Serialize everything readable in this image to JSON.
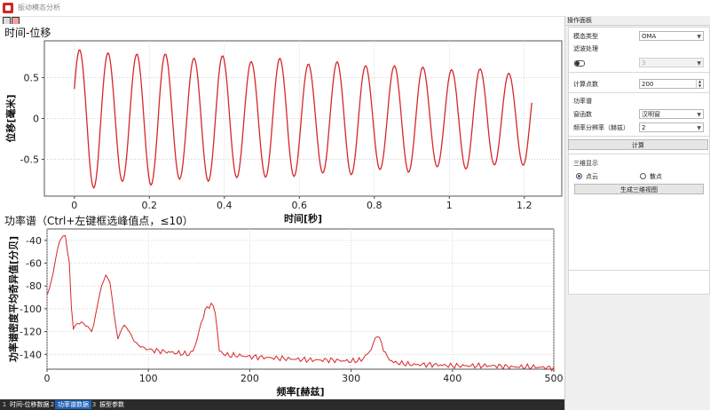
{
  "window": {
    "title": "振动模态分析"
  },
  "plot1": {
    "title": "时间-位移",
    "xlabel": "时间[秒]",
    "ylabel": "位移[毫米]",
    "xticks": [
      "0",
      "0.2",
      "0.4",
      "0.6",
      "0.8",
      "1",
      "1.2"
    ],
    "yticks": [
      "0.5",
      "0",
      "-0.5"
    ]
  },
  "plot2": {
    "title": "功率谱（Ctrl+左键框选峰值点，≤10）",
    "xlabel": "频率[赫兹]",
    "ylabel": "功率谱密度平均奇异值[分贝]",
    "xticks": [
      "0",
      "100",
      "200",
      "300",
      "400",
      "500"
    ],
    "yticks": [
      "-40",
      "-60",
      "-80",
      "-100",
      "-120",
      "-140"
    ]
  },
  "chart_data": [
    {
      "type": "line",
      "title": "时间-位移",
      "xlabel": "时间[秒]",
      "ylabel": "位移[毫米]",
      "xlim": [
        -0.08,
        1.3
      ],
      "ylim": [
        -0.95,
        0.95
      ],
      "grid": true,
      "color": "#d62728",
      "waveform": {
        "t_start": 0.0,
        "t_end": 1.22,
        "frequency_hz": 13.1,
        "amplitude_start": 0.83,
        "amplitude_end": 0.56
      },
      "series": [
        {
          "x_peaks": [
            0.016,
            0.092,
            0.168,
            0.245,
            0.321,
            0.397,
            0.474,
            0.55,
            0.626,
            0.703,
            0.779,
            0.855,
            0.931,
            1.008,
            1.084,
            1.16
          ],
          "y_peaks": [
            0.8,
            0.78,
            0.77,
            0.76,
            0.75,
            0.74,
            0.72,
            0.71,
            0.7,
            0.68,
            0.67,
            0.65,
            0.63,
            0.61,
            0.58,
            0.53
          ]
        }
      ]
    },
    {
      "type": "line",
      "title": "功率谱（Ctrl+左键框选峰值点，≤10）",
      "xlabel": "频率[赫兹]",
      "ylabel": "功率谱密度平均奇异值[分贝]",
      "xlim": [
        0,
        500
      ],
      "ylim": [
        -153,
        -30
      ],
      "grid": true,
      "color": "#d62728",
      "series": [
        {
          "x": [
            0,
            5,
            8,
            13,
            18,
            22,
            25,
            30,
            35,
            40,
            45,
            50,
            55,
            58,
            62,
            66,
            70,
            75,
            80,
            85,
            90,
            95,
            100,
            110,
            120,
            130,
            140,
            145,
            150,
            155,
            160,
            163,
            166,
            170,
            175,
            180,
            190,
            200,
            220,
            240,
            260,
            280,
            300,
            310,
            318,
            322,
            326,
            330,
            336,
            342,
            350,
            360,
            380,
            400,
            420,
            440,
            460,
            480,
            500
          ],
          "y": [
            -88,
            -74,
            -58,
            -38,
            -36,
            -60,
            -118,
            -113,
            -112,
            -116,
            -120,
            -95,
            -76,
            -71,
            -76,
            -104,
            -127,
            -114,
            -118,
            -127,
            -132,
            -134,
            -136,
            -137,
            -138,
            -139,
            -140,
            -136,
            -120,
            -103,
            -97,
            -96,
            -103,
            -137,
            -140,
            -141,
            -141,
            -142,
            -143,
            -144,
            -145,
            -145,
            -146,
            -145,
            -138,
            -131,
            -122,
            -131,
            -143,
            -147,
            -148,
            -149,
            -149,
            -150,
            -150,
            -150,
            -151,
            -151,
            -152
          ]
        }
      ]
    }
  ],
  "status_tabs": [
    {
      "num": "1",
      "label": "时间-位移数据"
    },
    {
      "num": "2",
      "label": "功率谱数据"
    },
    {
      "num": "3",
      "label": "振型参数"
    }
  ],
  "panel": {
    "title": "操作面板",
    "mode_type_label": "模态类型",
    "mode_type_value": "OMA",
    "filter_label": "滤波处理",
    "filter_value": "3",
    "points_label": "计算点数",
    "points_value": "200",
    "psd_section": "功率谱",
    "window_label": "窗函数",
    "window_value": "汉明窗",
    "resolution_label": "频率分辨率（赫兹）",
    "resolution_value": "2",
    "compute_button": "计算",
    "view3d_section": "三维显示",
    "radio_cloud": "点云",
    "radio_scatter": "散点",
    "gen3d_button": "生成三维视图"
  }
}
